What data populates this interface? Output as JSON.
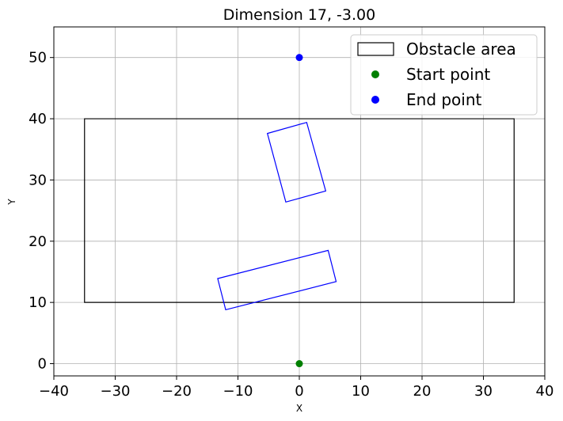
{
  "chart_data": {
    "type": "scatter",
    "title": "Dimension 17, -3.00",
    "xlabel": "X",
    "ylabel": "Y",
    "xlim": [
      -40,
      40
    ],
    "ylim": [
      -2,
      55
    ],
    "xticks": [
      -40,
      -30,
      -20,
      -10,
      0,
      10,
      20,
      30,
      40
    ],
    "yticks": [
      0,
      10,
      20,
      30,
      40,
      50
    ],
    "xtick_labels": [
      "−40",
      "−30",
      "−20",
      "−10",
      "0",
      "10",
      "20",
      "30",
      "40"
    ],
    "ytick_labels": [
      "0",
      "10",
      "20",
      "30",
      "40",
      "50"
    ],
    "grid": true,
    "legend_position": "top-right",
    "legend": [
      {
        "label": "Obstacle area",
        "marker": "rectangle",
        "color": "#000000"
      },
      {
        "label": "Start point",
        "marker": "dot",
        "color": "#008000"
      },
      {
        "label": "End point",
        "marker": "dot",
        "color": "#0000ff"
      }
    ],
    "obstacle_area": {
      "color": "#000000",
      "polygon": [
        [
          -35,
          10
        ],
        [
          35,
          10
        ],
        [
          35,
          40
        ],
        [
          -35,
          40
        ]
      ]
    },
    "obstacles": [
      {
        "color": "#0000ff",
        "polygon": [
          [
            -5.2,
            37.6
          ],
          [
            1.2,
            39.4
          ],
          [
            4.3,
            28.2
          ],
          [
            -2.2,
            26.4
          ]
        ]
      },
      {
        "color": "#0000ff",
        "polygon": [
          [
            -13.3,
            13.9
          ],
          [
            4.7,
            18.5
          ],
          [
            6.0,
            13.4
          ],
          [
            -12.0,
            8.8
          ]
        ]
      }
    ],
    "start_point": {
      "x": 0,
      "y": 0,
      "color": "#008000"
    },
    "end_point": {
      "x": 0,
      "y": 50,
      "color": "#0000ff"
    }
  }
}
